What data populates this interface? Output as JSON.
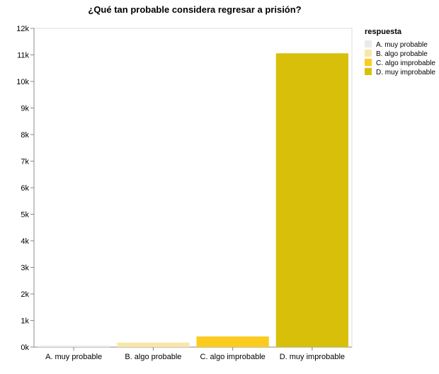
{
  "chart_data": {
    "type": "bar",
    "title": "¿Qué tan probable considera regresar a prisión?",
    "xlabel": "",
    "ylabel": "",
    "ylim": [
      0,
      12000
    ],
    "yticks": [
      "0k",
      "1k",
      "2k",
      "3k",
      "4k",
      "5k",
      "6k",
      "7k",
      "8k",
      "9k",
      "10k",
      "11k",
      "12k"
    ],
    "categories": [
      "A. muy probable",
      "B. algo probable",
      "C. algo improbable",
      "D. muy improbable"
    ],
    "values": [
      60,
      170,
      400,
      11060
    ],
    "colors": [
      "#ebebeb",
      "#f9e7aa",
      "#fccb1f",
      "#d8c00a"
    ],
    "legend": {
      "title": "respuesta",
      "position": "top-right",
      "entries": [
        "A. muy probable",
        "B. algo probable",
        "C. algo improbable",
        "D. muy improbable"
      ]
    },
    "grid": false
  }
}
